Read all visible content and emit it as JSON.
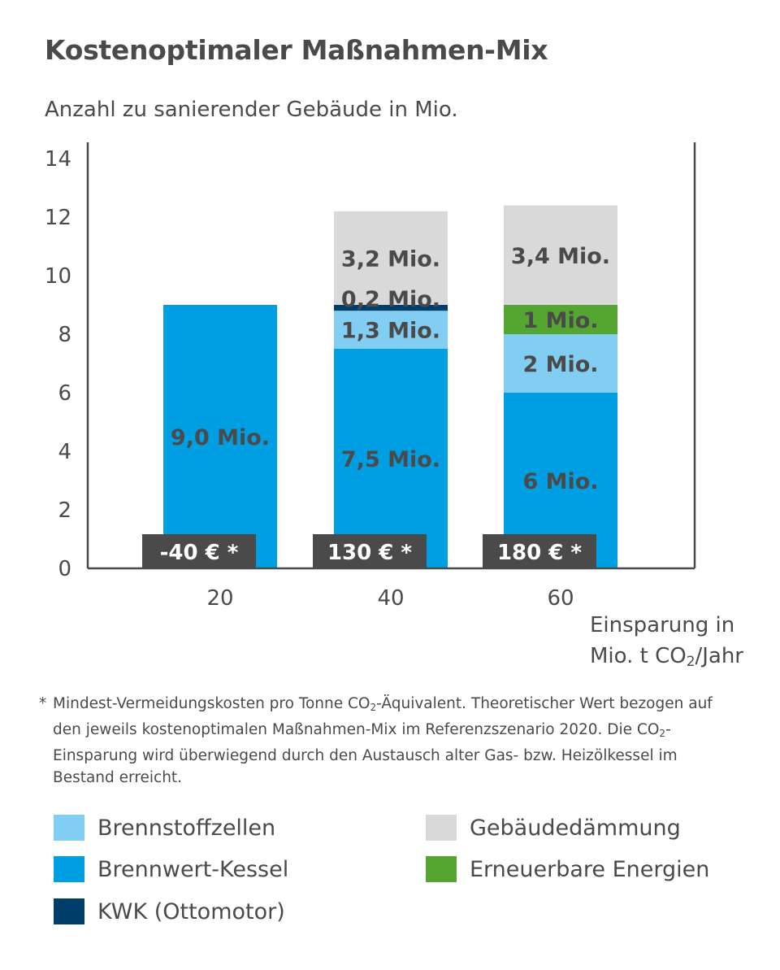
{
  "chart_data": {
    "type": "bar",
    "stacked": true,
    "title": "Kostenoptimaler Maßnahmen-Mix",
    "ylabel": "Anzahl zu sanierender Gebäude in Mio.",
    "xlabel_line1": "Einsparung in",
    "xlabel_line2_prefix": "Mio. t CO",
    "xlabel_line2_sub": "2",
    "xlabel_line2_suffix": "/Jahr",
    "ylim": [
      0,
      14
    ],
    "yticks": [
      "0",
      "2",
      "4",
      "6",
      "8",
      "10",
      "12",
      "14"
    ],
    "categories": [
      "20",
      "40",
      "60"
    ],
    "series": [
      {
        "name": "Brennwert-Kessel",
        "color": "#009fe3",
        "values": [
          9.0,
          7.5,
          6.0
        ],
        "labels": [
          "9,0 Mio.",
          "7,5 Mio.",
          "6 Mio."
        ]
      },
      {
        "name": "Brennstoffzellen",
        "color": "#82cdf2",
        "values": [
          0,
          1.3,
          2.0
        ],
        "labels": [
          "",
          "1,3 Mio.",
          "2 Mio."
        ]
      },
      {
        "name": "KWK (Ottomotor)",
        "color": "#003f6b",
        "values": [
          0,
          0.2,
          0
        ],
        "labels": [
          "",
          "0,2 Mio.",
          ""
        ]
      },
      {
        "name": "Erneuerbare Energien",
        "color": "#55a630",
        "values": [
          0,
          0,
          1.0
        ],
        "labels": [
          "",
          "",
          "1 Mio."
        ]
      },
      {
        "name": "Gebäudedämmung",
        "color": "#d9d9d9",
        "values": [
          0,
          3.2,
          3.4
        ],
        "labels": [
          "",
          "3,2 Mio.",
          "3,4 Mio."
        ]
      }
    ],
    "cost_labels": [
      "-40 € *",
      "130 € *",
      "180 € *"
    ],
    "colors": {
      "text": "#4a4a4a",
      "cost_box": "#4a4a4a",
      "axis": "#4a4a4a",
      "segment_label": "#4a4a4a"
    }
  },
  "footnote": {
    "star": "*",
    "part1": "Mindest-Vermeidungskosten pro Tonne CO",
    "sub1": "2",
    "part2": "-Äquivalent. Theoretischer Wert bezogen auf den jeweils kostenoptimalen Maßnahmen-Mix im Referenzszenario 2020. Die CO",
    "sub2": "2",
    "part3": "-Einsparung wird überwiegend durch den Austausch alter Gas- bzw. Heizölkessel im Bestand erreicht."
  },
  "legend": [
    {
      "label": "Brennstoffzellen",
      "color": "#82cdf2"
    },
    {
      "label": "Brennwert-Kessel",
      "color": "#009fe3"
    },
    {
      "label": "KWK (Ottomotor)",
      "color": "#003f6b"
    },
    {
      "label": "Gebäudedämmung",
      "color": "#d9d9d9"
    },
    {
      "label": "Erneuerbare Energien",
      "color": "#55a630"
    }
  ]
}
